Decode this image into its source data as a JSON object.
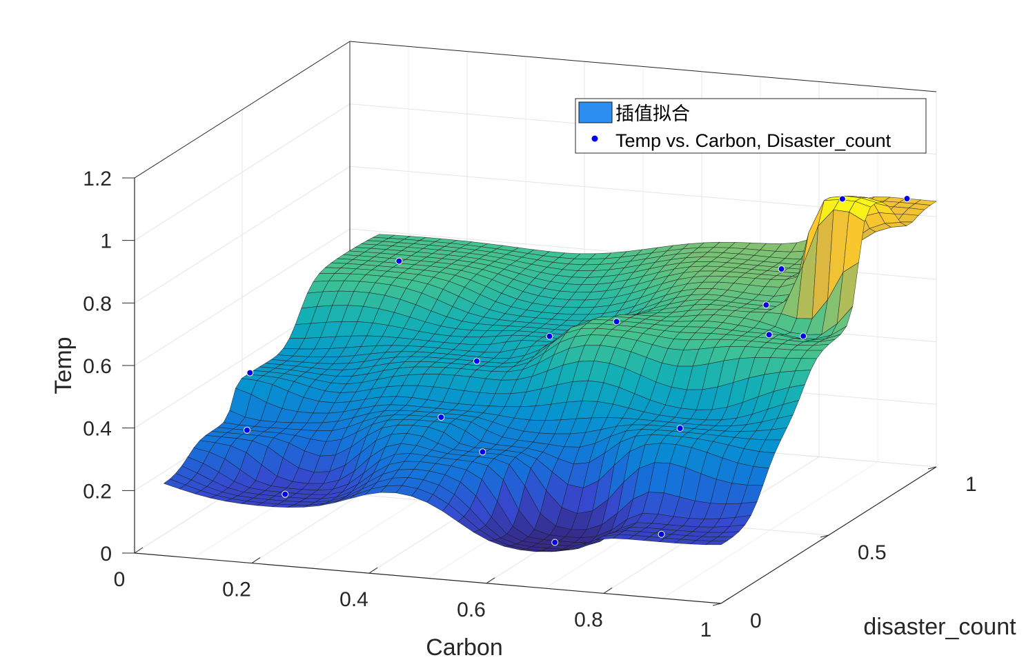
{
  "chart_data": {
    "type": "surface",
    "title": "",
    "xlabel": "Carbon",
    "ylabel": "disaster_count",
    "zlabel": "Temp",
    "xlim": [
      0,
      1
    ],
    "ylim": [
      0,
      1
    ],
    "zlim": [
      0,
      1.2
    ],
    "x_ticks": [
      "0",
      "0.2",
      "0.4",
      "0.6",
      "0.8",
      "1"
    ],
    "y_ticks": [
      "0",
      "0.5",
      "1"
    ],
    "z_ticks": [
      "0",
      "0.2",
      "0.4",
      "0.6",
      "0.8",
      "1",
      "1.2"
    ],
    "grid": true,
    "colormap": "parula",
    "legend_position": "top-right",
    "legend": [
      {
        "label": "插值拟合",
        "kind": "surface-patch",
        "color": "#2c8ef0"
      },
      {
        "label": "Temp vs. Carbon, Disaster_count",
        "kind": "marker",
        "color": "#0000ee"
      }
    ],
    "series": [
      {
        "name": "Temp vs. Carbon, Disaster_count",
        "kind": "scatter3",
        "points": [
          {
            "x": 0.15,
            "y": 0.82,
            "z": 0.6
          },
          {
            "x": 0.05,
            "y": 0.4,
            "z": 0.41
          },
          {
            "x": 0.1,
            "y": 0.25,
            "z": 0.3
          },
          {
            "x": 0.22,
            "y": 0.1,
            "z": 0.18
          },
          {
            "x": 0.4,
            "y": 0.5,
            "z": 0.46
          },
          {
            "x": 0.48,
            "y": 0.62,
            "z": 0.5
          },
          {
            "x": 0.42,
            "y": 0.28,
            "z": 0.38
          },
          {
            "x": 0.52,
            "y": 0.2,
            "z": 0.32
          },
          {
            "x": 0.62,
            "y": 0.55,
            "z": 0.6
          },
          {
            "x": 0.78,
            "y": 0.88,
            "z": 0.65
          },
          {
            "x": 0.82,
            "y": 0.7,
            "z": 0.62
          },
          {
            "x": 0.82,
            "y": 0.3,
            "z": 0.4
          },
          {
            "x": 0.88,
            "y": 0.05,
            "z": 0.18
          },
          {
            "x": 0.68,
            "y": 0.1,
            "z": 0.1
          },
          {
            "x": 0.88,
            "y": 0.55,
            "z": 0.6
          },
          {
            "x": 0.92,
            "y": 0.6,
            "z": 0.58
          },
          {
            "x": 0.95,
            "y": 0.7,
            "z": 0.98
          },
          {
            "x": 0.95,
            "y": 1.0,
            "z": 0.85
          }
        ]
      }
    ]
  }
}
